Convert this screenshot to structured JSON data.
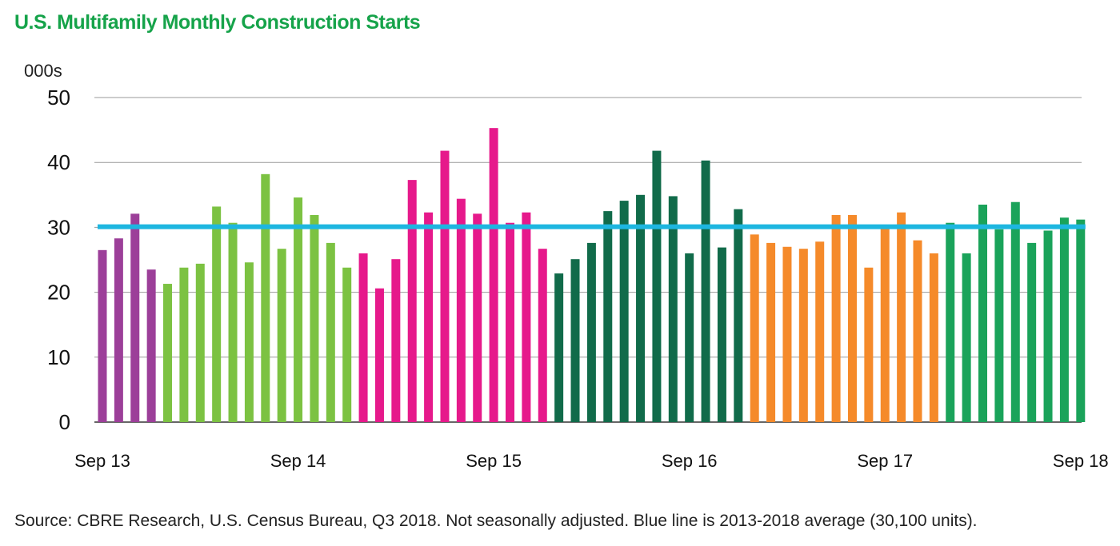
{
  "chart_data": {
    "type": "bar",
    "title": "U.S. Multifamily Monthly Construction Starts",
    "ylabel": "000s",
    "ylim": [
      0,
      50
    ],
    "yticks": [
      0,
      10,
      20,
      30,
      40,
      50
    ],
    "grid": true,
    "xtick_labels": [
      {
        "label": "Sep 13",
        "index": 0
      },
      {
        "label": "Sep 14",
        "index": 12
      },
      {
        "label": "Sep 15",
        "index": 24
      },
      {
        "label": "Sep 16",
        "index": 36
      },
      {
        "label": "Sep 17",
        "index": 48
      },
      {
        "label": "Sep 18",
        "index": 60
      }
    ],
    "average_line": {
      "value": 30.1,
      "color": "#1db6e0"
    },
    "groups": [
      {
        "color": "#9c3f99",
        "values": [
          26.5,
          28.3,
          32.1,
          23.5
        ]
      },
      {
        "color": "#7cc242",
        "values": [
          21.3,
          23.8,
          24.4,
          33.2,
          30.7,
          24.6,
          38.2,
          26.7,
          34.6,
          31.9,
          27.6,
          23.8
        ]
      },
      {
        "color": "#e6198b",
        "values": [
          26.0,
          20.6,
          25.1,
          37.3,
          32.3,
          41.8,
          34.4,
          32.1,
          45.3,
          30.7,
          32.3,
          26.7
        ]
      },
      {
        "color": "#116b4a",
        "values": [
          22.9,
          25.1,
          27.6,
          32.5,
          34.1,
          35.0,
          41.8,
          34.8,
          26.0,
          40.3,
          26.9,
          32.8
        ]
      },
      {
        "color": "#f58a2a",
        "values": [
          28.9,
          27.6,
          27.0,
          26.7,
          27.8,
          31.9,
          31.9,
          23.8,
          30.0,
          32.3,
          28.0,
          26.0
        ]
      },
      {
        "color": "#1aa35a",
        "values": [
          30.7,
          26.0,
          33.5,
          29.7,
          33.9,
          27.6,
          29.5,
          31.5,
          31.2
        ]
      }
    ]
  },
  "source_note": "Source: CBRE Research, U.S. Census Bureau, Q3 2018. Not seasonally adjusted. Blue line is 2013-2018 average (30,100 units)."
}
